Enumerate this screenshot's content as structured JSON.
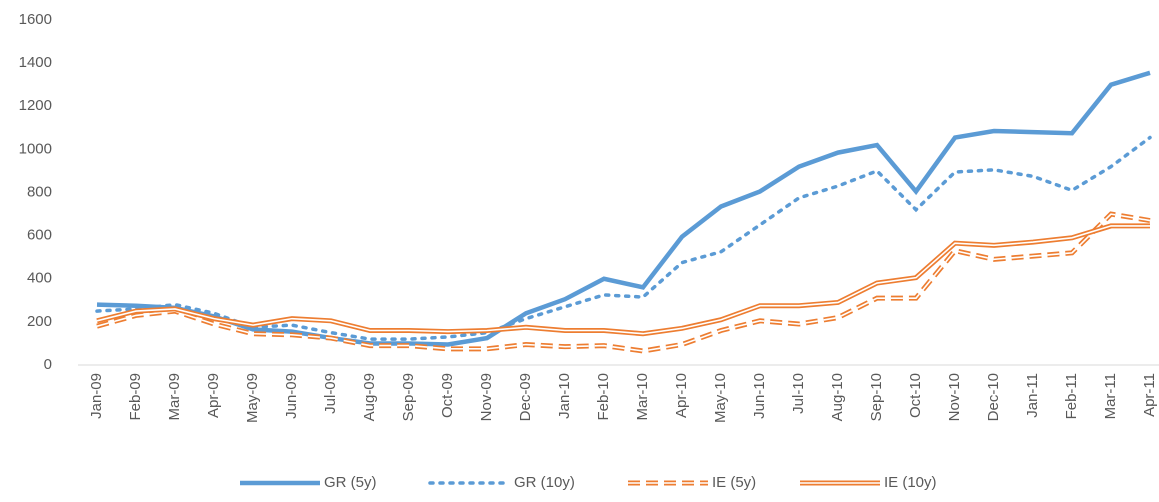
{
  "chart_data": {
    "type": "line",
    "categories": [
      "Jan-09",
      "Feb-09",
      "Mar-09",
      "Apr-09",
      "May-09",
      "Jun-09",
      "Jul-09",
      "Aug-09",
      "Sep-09",
      "Oct-09",
      "Nov-09",
      "Dec-09",
      "Jan-10",
      "Feb-10",
      "Mar-10",
      "Apr-10",
      "May-10",
      "Jun-10",
      "Jul-10",
      "Aug-10",
      "Sep-10",
      "Oct-10",
      "Nov-10",
      "Dec-10",
      "Jan-11",
      "Feb-11",
      "Mar-11",
      "Apr-11"
    ],
    "series": [
      {
        "name": "GR (5y)",
        "color": "#5b9bd5",
        "dash": "solid",
        "double": false,
        "values": [
          280,
          275,
          265,
          225,
          165,
          155,
          125,
          100,
          100,
          95,
          125,
          240,
          305,
          400,
          360,
          595,
          735,
          805,
          920,
          985,
          1020,
          805,
          1055,
          1085,
          1080,
          1075,
          1300,
          1355
        ]
      },
      {
        "name": "GR (10y)",
        "color": "#5b9bd5",
        "dash": "dotted",
        "double": false,
        "values": [
          250,
          260,
          280,
          240,
          175,
          185,
          150,
          120,
          120,
          130,
          150,
          215,
          270,
          325,
          315,
          475,
          525,
          650,
          775,
          830,
          900,
          720,
          895,
          905,
          875,
          810,
          920,
          1055
        ]
      },
      {
        "name": "IE (5y)",
        "color": "#ed7d31",
        "dash": "dashed",
        "double": true,
        "values": [
          180,
          230,
          250,
          190,
          145,
          140,
          125,
          90,
          90,
          75,
          75,
          95,
          85,
          90,
          65,
          95,
          160,
          205,
          190,
          220,
          310,
          310,
          530,
          490,
          505,
          520,
          700,
          670
        ]
      },
      {
        "name": "IE (10y)",
        "color": "#ed7d31",
        "dash": "solid",
        "double": true,
        "values": [
          205,
          250,
          260,
          215,
          185,
          215,
          205,
          160,
          160,
          155,
          160,
          175,
          160,
          160,
          145,
          170,
          210,
          275,
          275,
          290,
          380,
          405,
          565,
          555,
          570,
          590,
          645,
          645
        ]
      }
    ],
    "ylim": [
      0,
      1600
    ],
    "yticks": [
      0,
      200,
      400,
      600,
      800,
      1000,
      1200,
      1400,
      1600
    ],
    "grid": false,
    "legend": "bottom"
  }
}
